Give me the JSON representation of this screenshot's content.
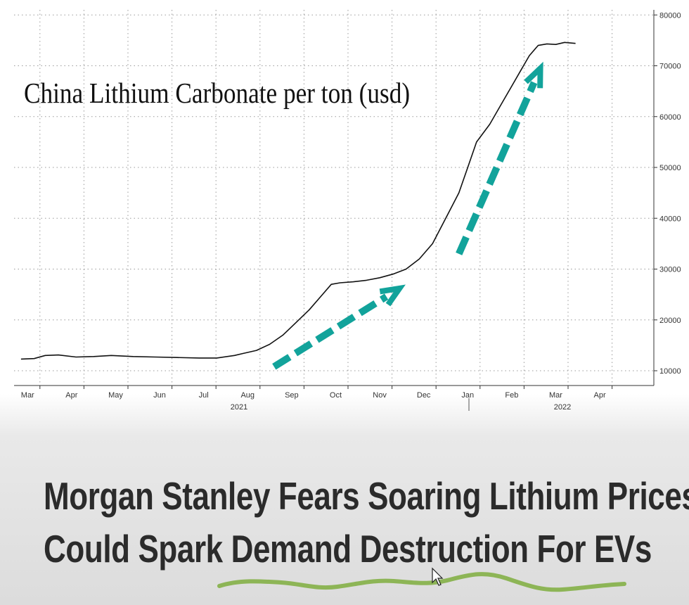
{
  "chart_data": {
    "type": "line",
    "title": "China Lithium Carbonate per ton (usd)",
    "xlabel": "",
    "ylabel": "",
    "x_ticks": [
      "Mar",
      "Apr",
      "May",
      "Jun",
      "Jul",
      "Aug",
      "Sep",
      "Oct",
      "Nov",
      "Dec",
      "Jan",
      "Feb",
      "Mar",
      "Apr"
    ],
    "year_labels": [
      "2021",
      "2022"
    ],
    "y_ticks": [
      10000,
      20000,
      30000,
      40000,
      50000,
      60000,
      70000,
      80000
    ],
    "y_tick_labels": [
      "10000",
      "20000",
      "30000",
      "40000",
      "50000",
      "60000",
      "70000",
      "80000"
    ],
    "ylim": [
      8500,
      81000
    ],
    "x_unit": "months since start of Mar 2021",
    "xlim": [
      0,
      14
    ],
    "grid": true,
    "series": [
      {
        "name": "China Lithium Carbonate per ton (usd)",
        "x": [
          -0.05,
          0.25,
          0.5,
          0.8,
          1.2,
          1.6,
          2.0,
          2.5,
          3.0,
          3.5,
          4.0,
          4.4,
          4.8,
          5.0,
          5.3,
          5.6,
          5.9,
          6.2,
          6.5,
          6.8,
          7.0,
          7.2,
          7.5,
          7.8,
          8.1,
          8.4,
          8.7,
          9.0,
          9.3,
          9.6,
          9.9,
          10.1,
          10.3,
          10.6,
          10.9,
          11.1,
          11.3,
          11.5,
          11.7,
          11.9,
          12.1,
          12.3,
          12.55
        ],
        "values": [
          12300,
          12400,
          13000,
          13100,
          12700,
          12800,
          13000,
          12800,
          12700,
          12600,
          12500,
          12500,
          13000,
          13400,
          14000,
          15200,
          17000,
          19500,
          22000,
          25000,
          27000,
          27300,
          27500,
          27800,
          28300,
          29000,
          30000,
          32000,
          35000,
          40000,
          45000,
          50000,
          55000,
          58500,
          63000,
          66000,
          69000,
          72000,
          74000,
          74300,
          74200,
          74600,
          74400
        ]
      }
    ],
    "annotations": [
      {
        "type": "arrow",
        "label": "",
        "from": [
          5.7,
          10800
        ],
        "to": [
          8.55,
          26200
        ]
      },
      {
        "type": "arrow",
        "label": "",
        "from": [
          9.9,
          33000
        ],
        "to": [
          11.75,
          69500
        ]
      }
    ]
  },
  "headline": {
    "line1": "Morgan Stanley Fears Soaring Lithium Prices",
    "line2": "Could Spark Demand Destruction For EVs"
  },
  "colors": {
    "line": "#111111",
    "arrow": "#12a39b",
    "underline": "#7fae3e",
    "grid": "#9a9a9a",
    "headline": "#2b2b2b"
  }
}
